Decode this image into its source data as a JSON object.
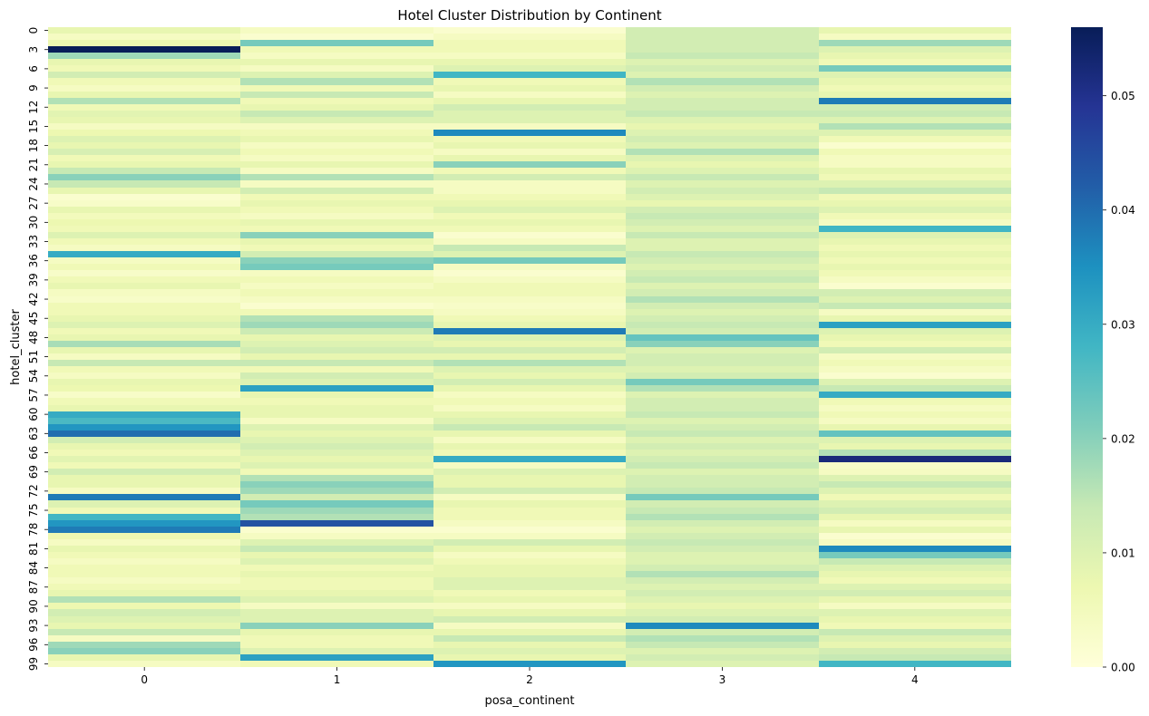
{
  "chart_data": {
    "type": "heatmap",
    "title": "Hotel Cluster Distribution by Continent",
    "xlabel": "posa_continent",
    "ylabel": "hotel_cluster",
    "x_categories": [
      "0",
      "1",
      "2",
      "3",
      "4"
    ],
    "row_count": 100,
    "y_tick_labels": [
      "0",
      "3",
      "6",
      "9",
      "12",
      "15",
      "18",
      "21",
      "24",
      "27",
      "30",
      "33",
      "36",
      "39",
      "42",
      "45",
      "48",
      "51",
      "54",
      "57",
      "60",
      "63",
      "66",
      "69",
      "72",
      "75",
      "78",
      "81",
      "84",
      "87",
      "90",
      "93",
      "96",
      "99"
    ],
    "colormap": "YlGnBu",
    "colorbar": {
      "min": 0.0,
      "max": 0.056,
      "ticks": [
        "0.00",
        "0.01",
        "0.02",
        "0.03",
        "0.04",
        "0.05"
      ],
      "tick_values": [
        0.0,
        0.01,
        0.02,
        0.03,
        0.04,
        0.05
      ]
    },
    "values_by_continent": [
      [
        0.008,
        0.004,
        0.007,
        0.056,
        0.018,
        0.008,
        0.006,
        0.012,
        0.006,
        0.004,
        0.008,
        0.016,
        0.006,
        0.009,
        0.008,
        0.004,
        0.007,
        0.01,
        0.008,
        0.011,
        0.006,
        0.008,
        0.014,
        0.02,
        0.014,
        0.008,
        0.002,
        0.003,
        0.008,
        0.005,
        0.007,
        0.006,
        0.01,
        0.006,
        0.004,
        0.03,
        0.004,
        0.006,
        0.003,
        0.006,
        0.008,
        0.004,
        0.003,
        0.006,
        0.006,
        0.008,
        0.01,
        0.006,
        0.008,
        0.017,
        0.008,
        0.004,
        0.014,
        0.006,
        0.004,
        0.008,
        0.007,
        0.003,
        0.006,
        0.008,
        0.03,
        0.027,
        0.034,
        0.04,
        0.012,
        0.008,
        0.006,
        0.009,
        0.006,
        0.012,
        0.008,
        0.008,
        0.004,
        0.038,
        0.01,
        0.006,
        0.028,
        0.034,
        0.038,
        0.007,
        0.004,
        0.008,
        0.006,
        0.004,
        0.006,
        0.006,
        0.004,
        0.006,
        0.008,
        0.016,
        0.007,
        0.012,
        0.01,
        0.008,
        0.014,
        0.004,
        0.018,
        0.02,
        0.008,
        0.004
      ],
      [
        0.004,
        0.002,
        0.022,
        0.006,
        0.004,
        0.008,
        0.004,
        0.01,
        0.016,
        0.006,
        0.014,
        0.006,
        0.008,
        0.014,
        0.01,
        0.004,
        0.006,
        0.008,
        0.004,
        0.006,
        0.004,
        0.008,
        0.004,
        0.016,
        0.004,
        0.012,
        0.006,
        0.008,
        0.006,
        0.004,
        0.008,
        0.006,
        0.02,
        0.008,
        0.006,
        0.012,
        0.02,
        0.022,
        0.004,
        0.006,
        0.004,
        0.006,
        0.004,
        0.002,
        0.006,
        0.016,
        0.018,
        0.013,
        0.008,
        0.01,
        0.012,
        0.008,
        0.014,
        0.006,
        0.012,
        0.01,
        0.032,
        0.008,
        0.006,
        0.008,
        0.008,
        0.004,
        0.01,
        0.008,
        0.01,
        0.012,
        0.01,
        0.008,
        0.01,
        0.006,
        0.016,
        0.02,
        0.018,
        0.012,
        0.022,
        0.018,
        0.016,
        0.044,
        0.002,
        0.004,
        0.01,
        0.014,
        0.008,
        0.01,
        0.006,
        0.008,
        0.006,
        0.006,
        0.008,
        0.01,
        0.004,
        0.01,
        0.01,
        0.02,
        0.008,
        0.006,
        0.006,
        0.01,
        0.032,
        0.006
      ],
      [
        0.002,
        0.004,
        0.006,
        0.006,
        0.004,
        0.008,
        0.01,
        0.028,
        0.006,
        0.008,
        0.004,
        0.008,
        0.012,
        0.01,
        0.01,
        0.004,
        0.036,
        0.006,
        0.008,
        0.004,
        0.008,
        0.02,
        0.006,
        0.012,
        0.004,
        0.004,
        0.006,
        0.008,
        0.01,
        0.006,
        0.008,
        0.006,
        0.002,
        0.004,
        0.014,
        0.01,
        0.022,
        0.004,
        0.002,
        0.004,
        0.006,
        0.006,
        0.004,
        0.003,
        0.004,
        0.006,
        0.008,
        0.038,
        0.01,
        0.008,
        0.012,
        0.008,
        0.016,
        0.01,
        0.008,
        0.012,
        0.008,
        0.004,
        0.006,
        0.004,
        0.008,
        0.01,
        0.014,
        0.008,
        0.004,
        0.008,
        0.006,
        0.03,
        0.004,
        0.01,
        0.008,
        0.008,
        0.012,
        0.004,
        0.008,
        0.006,
        0.006,
        0.004,
        0.002,
        0.004,
        0.012,
        0.008,
        0.004,
        0.006,
        0.008,
        0.008,
        0.01,
        0.01,
        0.006,
        0.008,
        0.004,
        0.008,
        0.012,
        0.004,
        0.008,
        0.014,
        0.008,
        0.01,
        0.008,
        0.034
      ],
      [
        0.012,
        0.012,
        0.012,
        0.012,
        0.014,
        0.01,
        0.012,
        0.01,
        0.016,
        0.012,
        0.01,
        0.012,
        0.012,
        0.014,
        0.01,
        0.008,
        0.01,
        0.012,
        0.01,
        0.016,
        0.01,
        0.008,
        0.01,
        0.014,
        0.01,
        0.012,
        0.01,
        0.008,
        0.012,
        0.014,
        0.012,
        0.01,
        0.014,
        0.01,
        0.01,
        0.014,
        0.012,
        0.01,
        0.012,
        0.014,
        0.01,
        0.012,
        0.016,
        0.012,
        0.01,
        0.012,
        0.014,
        0.012,
        0.024,
        0.02,
        0.01,
        0.012,
        0.012,
        0.01,
        0.012,
        0.022,
        0.016,
        0.01,
        0.012,
        0.012,
        0.014,
        0.01,
        0.012,
        0.014,
        0.01,
        0.012,
        0.01,
        0.012,
        0.014,
        0.01,
        0.012,
        0.012,
        0.014,
        0.022,
        0.012,
        0.014,
        0.016,
        0.012,
        0.01,
        0.012,
        0.014,
        0.012,
        0.01,
        0.01,
        0.012,
        0.016,
        0.012,
        0.01,
        0.012,
        0.01,
        0.008,
        0.01,
        0.012,
        0.036,
        0.012,
        0.016,
        0.014,
        0.01,
        0.012,
        0.01
      ],
      [
        0.008,
        0.004,
        0.018,
        0.01,
        0.008,
        0.006,
        0.022,
        0.01,
        0.008,
        0.006,
        0.008,
        0.038,
        0.012,
        0.014,
        0.01,
        0.016,
        0.01,
        0.006,
        0.002,
        0.006,
        0.004,
        0.004,
        0.008,
        0.006,
        0.01,
        0.014,
        0.006,
        0.008,
        0.01,
        0.006,
        0.004,
        0.028,
        0.01,
        0.008,
        0.006,
        0.008,
        0.006,
        0.008,
        0.006,
        0.004,
        0.002,
        0.012,
        0.01,
        0.014,
        0.004,
        0.008,
        0.032,
        0.01,
        0.008,
        0.006,
        0.012,
        0.004,
        0.006,
        0.004,
        0.002,
        0.01,
        0.014,
        0.03,
        0.006,
        0.004,
        0.006,
        0.004,
        0.008,
        0.024,
        0.01,
        0.008,
        0.016,
        0.052,
        0.003,
        0.004,
        0.01,
        0.014,
        0.01,
        0.006,
        0.01,
        0.012,
        0.008,
        0.004,
        0.008,
        0.002,
        0.004,
        0.036,
        0.022,
        0.014,
        0.01,
        0.008,
        0.006,
        0.01,
        0.012,
        0.008,
        0.004,
        0.01,
        0.008,
        0.006,
        0.014,
        0.01,
        0.008,
        0.012,
        0.014,
        0.028
      ]
    ]
  }
}
